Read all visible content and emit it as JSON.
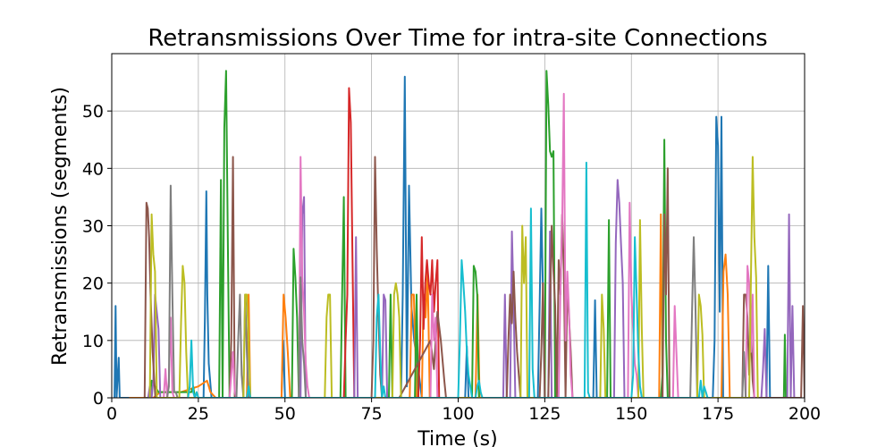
{
  "chart_data": {
    "type": "line",
    "title": "Retransmissions Over Time for intra-site Connections",
    "xlabel": "Time (s)",
    "ylabel": "Retransmissions (segments)",
    "xlim": [
      0,
      200
    ],
    "ylim": [
      0,
      60
    ],
    "xticks": [
      0,
      25,
      50,
      75,
      100,
      125,
      150,
      175,
      200
    ],
    "yticks": [
      0,
      10,
      20,
      30,
      40,
      50
    ],
    "grid": true,
    "legend": "none",
    "colors": [
      "#1f77b4",
      "#ff7f0e",
      "#2ca02c",
      "#d62728",
      "#9467bd",
      "#8c564b",
      "#e377c2",
      "#7f7f7f",
      "#bcbd22",
      "#17becf"
    ],
    "series": [
      {
        "x": [
          0.8,
          1.1,
          1.4,
          2.0,
          2.3,
          2.7,
          26.5,
          26.9,
          27.3,
          27.6,
          28.0,
          28.8,
          29.5,
          49.0,
          49.5,
          50.0,
          83.5,
          84.0,
          84.6,
          85.2,
          85.8,
          86.5,
          87.3,
          88.5,
          89.5,
          102.0,
          102.5,
          103.0,
          123.0,
          123.5,
          124.0,
          124.5,
          125.0,
          139.0,
          139.5,
          140.0,
          173.5,
          174.0,
          174.5,
          175.0,
          175.5,
          176.0,
          176.5,
          180.0,
          189.0,
          189.5,
          190.0
        ],
        "y": [
          0,
          16,
          0,
          7,
          0,
          0,
          0,
          14,
          36,
          18,
          6,
          0,
          0,
          0,
          10,
          0,
          0,
          18,
          56,
          2,
          37,
          16,
          10,
          5,
          0,
          0,
          9,
          0,
          0,
          16,
          33,
          18,
          0,
          0,
          17,
          0,
          0,
          10,
          49,
          44,
          15,
          49,
          0,
          0,
          0,
          23,
          0
        ]
      },
      {
        "x": [
          5.0,
          12.0,
          14.0,
          20.0,
          25.0,
          27.5,
          28.5,
          30.0,
          36.0,
          39.0,
          39.5,
          40.0,
          49.0,
          49.6,
          50.2,
          50.8,
          51.5,
          86.0,
          86.6,
          87.2,
          88.0,
          89.5,
          90.0,
          90.6,
          91.2,
          91.8,
          105.0,
          105.6,
          106.2,
          158.0,
          158.5,
          159.0,
          176.0,
          176.6,
          177.2,
          177.8,
          178.4
        ],
        "y": [
          0,
          0,
          1,
          1,
          2,
          3,
          1,
          0,
          0,
          0,
          18,
          0,
          0,
          18,
          14,
          8,
          0,
          0,
          18,
          18,
          0,
          0,
          18,
          14,
          22,
          0,
          0,
          18,
          0,
          0,
          32,
          0,
          0,
          22,
          25,
          18,
          0
        ]
      },
      {
        "x": [
          10.0,
          11.0,
          11.5,
          12.5,
          13.5,
          14.5,
          20.0,
          23.0,
          23.5,
          24.0,
          31.0,
          31.5,
          32.0,
          32.5,
          33.0,
          33.5,
          34.0,
          52.0,
          52.5,
          53.0,
          53.5,
          54.0,
          66.0,
          66.5,
          67.0,
          67.5,
          80.0,
          80.5,
          81.0,
          87.5,
          88.0,
          88.5,
          104.0,
          104.5,
          105.0,
          105.5,
          106.0,
          125.0,
          125.5,
          126.0,
          126.5,
          127.0,
          127.5,
          128.0,
          143.0,
          143.5,
          144.0,
          158.5,
          159.0,
          159.5,
          160.0,
          160.5,
          190.0,
          194.0,
          194.3,
          194.6
        ],
        "y": [
          0,
          0,
          3,
          2,
          1,
          1,
          1,
          1,
          2,
          0,
          0,
          38,
          0,
          47,
          57,
          28,
          0,
          0,
          26,
          21,
          14,
          0,
          0,
          18,
          35,
          0,
          0,
          18,
          0,
          0,
          18,
          0,
          0,
          23,
          22,
          18,
          0,
          0,
          57,
          51,
          43,
          42,
          43,
          0,
          0,
          31,
          0,
          0,
          4,
          45,
          10,
          0,
          0,
          0,
          11,
          0
        ]
      },
      {
        "x": [
          67.0,
          67.5,
          68.0,
          68.5,
          69.0,
          69.5,
          70.0,
          88.5,
          89.0,
          89.5,
          90.0,
          90.5,
          91.0,
          91.5,
          92.0,
          92.5,
          93.0,
          93.5,
          94.0,
          94.5
        ],
        "y": [
          0,
          10,
          18,
          54,
          48,
          24,
          0,
          0,
          10,
          28,
          12,
          20,
          24,
          20,
          18,
          24,
          15,
          20,
          24,
          0
        ]
      },
      {
        "x": [
          10.5,
          11.0,
          11.5,
          12.0,
          12.5,
          13.5,
          14.0,
          54.5,
          55.0,
          55.5,
          56.0,
          70.0,
          70.5,
          71.0,
          71.5,
          78.0,
          78.5,
          79.0,
          79.5,
          113.0,
          113.5,
          114.0,
          115.0,
          115.5,
          116.0,
          116.5,
          126.0,
          126.5,
          127.0,
          145.0,
          145.5,
          146.0,
          146.5,
          147.0,
          147.5,
          148.0,
          187.5,
          188.0,
          188.5,
          189.0,
          195.0,
          195.5,
          196.0,
          196.5,
          197.0
        ],
        "y": [
          0,
          2,
          0,
          3,
          18,
          12,
          0,
          0,
          32,
          35,
          0,
          0,
          28,
          0,
          0,
          0,
          18,
          17,
          0,
          0,
          18,
          0,
          0,
          29,
          17,
          0,
          0,
          29,
          0,
          0,
          27,
          38,
          34,
          27,
          20,
          0,
          0,
          5,
          12,
          0,
          0,
          32,
          0,
          16,
          0
        ]
      },
      {
        "x": [
          9.5,
          10.0,
          10.4,
          10.8,
          11.2,
          11.8,
          12.6,
          34.0,
          34.5,
          35.0,
          35.5,
          36.0,
          75.0,
          75.5,
          76.0,
          76.5,
          77.0,
          77.5,
          78.0,
          83.0,
          92.0,
          93.0,
          94.0,
          95.0,
          96.0,
          96.5,
          114.0,
          114.5,
          115.0,
          115.5,
          116.0,
          116.5,
          117.0,
          117.5,
          118.0,
          123.5,
          124.0,
          124.5,
          125.0,
          126.0,
          126.5,
          127.0,
          127.5,
          128.0,
          128.5,
          129.0,
          129.5,
          130.0,
          130.5,
          131.0,
          131.5,
          132.0,
          132.5,
          133.0,
          159.0,
          159.5,
          160.0,
          160.5,
          161.0,
          182.0,
          182.5,
          183.0,
          183.5,
          184.0,
          184.5,
          185.0,
          185.5,
          199.0,
          199.5,
          200.0
        ],
        "y": [
          0,
          34,
          33,
          28,
          18,
          8,
          0,
          0,
          10,
          42,
          0,
          0,
          0,
          10,
          42,
          26,
          14,
          4,
          0,
          0,
          10,
          5,
          15,
          10,
          3,
          0,
          0,
          10,
          18,
          13,
          22,
          14,
          8,
          4,
          0,
          0,
          8,
          20,
          0,
          0,
          15,
          30,
          22,
          16,
          0,
          24,
          18,
          32,
          22,
          0,
          20,
          14,
          8,
          0,
          0,
          32,
          18,
          40,
          0,
          0,
          18,
          18,
          14,
          4,
          12,
          3,
          0,
          0,
          16,
          0
        ]
      },
      {
        "x": [
          15.0,
          15.5,
          16.0,
          16.5,
          17.0,
          17.5,
          18.0,
          34.0,
          34.5,
          35.0,
          35.5,
          36.0,
          36.5,
          54.0,
          54.5,
          55.0,
          55.5,
          56.0,
          56.5,
          57.0,
          92.0,
          92.5,
          93.0,
          93.5,
          94.0,
          129.0,
          129.5,
          130.0,
          130.5,
          131.0,
          131.5,
          132.0,
          132.5,
          133.0,
          133.5,
          149.0,
          149.5,
          150.0,
          150.5,
          151.0,
          151.5,
          152.0,
          162.0,
          162.5,
          163.0,
          163.5,
          183.0,
          183.5,
          184.0,
          184.5,
          185.0,
          185.5
        ],
        "y": [
          0,
          5,
          0,
          3,
          14,
          1,
          0,
          0,
          4,
          8,
          1,
          0,
          0,
          0,
          42,
          21,
          15,
          6,
          2,
          0,
          0,
          18,
          10,
          14,
          0,
          0,
          18,
          30,
          53,
          10,
          22,
          15,
          4,
          0,
          0,
          0,
          34,
          18,
          12,
          6,
          4,
          0,
          0,
          16,
          8,
          0,
          0,
          23,
          20,
          8,
          18,
          0
        ],
        "note": ""
      },
      {
        "x": [
          16.0,
          16.5,
          17.0,
          17.5,
          18.0,
          18.5,
          19.0,
          36.0,
          36.5,
          37.0,
          37.5,
          38.0,
          38.5,
          39.0,
          39.5,
          54.0,
          54.5,
          55.0,
          55.5,
          56.0,
          167.0,
          167.5,
          168.0,
          168.5,
          169.0,
          182.0,
          182.5,
          183.0
        ],
        "y": [
          0,
          2,
          37,
          18,
          1,
          1,
          0,
          0,
          10,
          18,
          4,
          0,
          18,
          8,
          0,
          0,
          21,
          10,
          6,
          0,
          0,
          15,
          28,
          16,
          0,
          0,
          8,
          0
        ],
        "note": ""
      },
      {
        "x": [
          11.0,
          11.5,
          12.0,
          12.5,
          13.0,
          19.5,
          20.0,
          20.5,
          21.0,
          21.5,
          22.0,
          38.0,
          38.5,
          39.0,
          39.5,
          40.0,
          61.5,
          62.0,
          62.5,
          63.0,
          63.5,
          81.0,
          81.5,
          82.0,
          82.5,
          83.0,
          83.5,
          118.0,
          118.5,
          119.0,
          119.5,
          120.0,
          141.0,
          141.5,
          142.0,
          142.5,
          152.0,
          152.5,
          153.0,
          153.5,
          169.0,
          169.5,
          170.0,
          170.5,
          171.0,
          184.0,
          184.5,
          185.0,
          185.5,
          186.0,
          186.5
        ],
        "y": [
          0,
          32,
          25,
          22,
          0,
          0,
          13,
          23,
          20,
          8,
          0,
          0,
          18,
          18,
          10,
          0,
          0,
          14,
          18,
          18,
          0,
          0,
          18,
          20,
          18,
          14,
          0,
          0,
          30,
          20,
          28,
          0,
          0,
          18,
          12,
          0,
          0,
          31,
          12,
          0,
          0,
          18,
          16,
          11,
          0,
          0,
          20,
          42,
          28,
          21,
          0
        ],
        "note": ""
      },
      {
        "x": [
          22.0,
          22.5,
          23.0,
          23.5,
          24.0,
          24.5,
          25.0,
          39.0,
          39.5,
          40.0,
          76.0,
          76.5,
          77.0,
          77.5,
          78.0,
          78.5,
          79.0,
          100.0,
          100.5,
          101.0,
          101.5,
          102.0,
          102.5,
          103.0,
          103.5,
          104.0,
          105.0,
          105.5,
          106.0,
          106.5,
          107.0,
          120.5,
          121.0,
          121.5,
          122.0,
          136.5,
          137.0,
          137.5,
          138.0,
          150.0,
          150.5,
          151.0,
          151.5,
          152.0,
          152.5,
          153.0,
          169.5,
          170.0,
          170.5,
          171.0,
          171.5,
          172.0,
          173.0
        ],
        "y": [
          0,
          2,
          10,
          1,
          0,
          1,
          0,
          0,
          2,
          0,
          0,
          14,
          18,
          8,
          0,
          2,
          0,
          0,
          10,
          24,
          20,
          15,
          8,
          4,
          2,
          0,
          0,
          2,
          3,
          1,
          0,
          0,
          33,
          5,
          0,
          0,
          41,
          1,
          0,
          0,
          4,
          28,
          18,
          8,
          2,
          0,
          0,
          3,
          0,
          2,
          1,
          0,
          0
        ],
        "note": ""
      }
    ]
  }
}
